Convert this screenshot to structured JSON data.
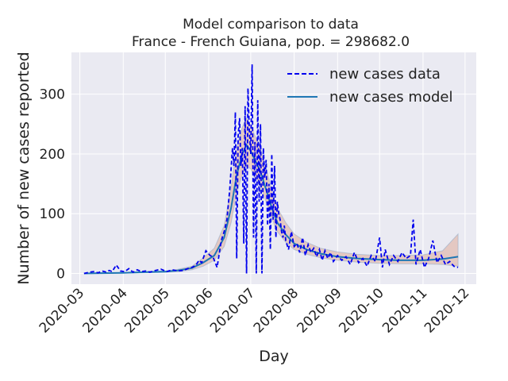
{
  "chart_data": {
    "type": "line",
    "title_line1": "Model comparison to data",
    "title_line2": "France - French Guiana, pop. = 298682.0",
    "xlabel": "Day",
    "ylabel": "Number of new cases reported",
    "x_ticks": [
      "2020-03",
      "2020-04",
      "2020-05",
      "2020-06",
      "2020-07",
      "2020-08",
      "2020-09",
      "2020-10",
      "2020-11",
      "2020-12"
    ],
    "y_ticks": [
      0,
      100,
      200,
      300
    ],
    "xlim": [
      "2020-02-24",
      "2020-12-09"
    ],
    "ylim": [
      -18,
      370
    ],
    "grid": true,
    "legend_position": "top-right",
    "legend": {
      "data_label": "new cases data",
      "model_label": "new cases model"
    },
    "colors": {
      "data": "#0000ee",
      "model": "#1f77b4",
      "background": "#eaeaf2",
      "grid": "#ffffff"
    },
    "series": [
      {
        "name": "new cases data",
        "style": "dashed",
        "x": [
          "2020-03-04",
          "2020-03-08",
          "2020-03-11",
          "2020-03-14",
          "2020-03-17",
          "2020-03-20",
          "2020-03-22",
          "2020-03-24",
          "2020-03-27",
          "2020-03-30",
          "2020-04-02",
          "2020-04-05",
          "2020-04-08",
          "2020-04-11",
          "2020-04-14",
          "2020-04-17",
          "2020-04-20",
          "2020-04-24",
          "2020-04-28",
          "2020-05-02",
          "2020-05-06",
          "2020-05-10",
          "2020-05-14",
          "2020-05-17",
          "2020-05-20",
          "2020-05-23",
          "2020-05-25",
          "2020-05-27",
          "2020-05-30",
          "2020-06-02",
          "2020-06-04",
          "2020-06-07",
          "2020-06-10",
          "2020-06-12",
          "2020-06-14",
          "2020-06-16",
          "2020-06-18",
          "2020-06-19",
          "2020-06-20",
          "2020-06-21",
          "2020-06-22",
          "2020-06-23",
          "2020-06-24",
          "2020-06-25",
          "2020-06-26",
          "2020-06-27",
          "2020-06-28",
          "2020-06-29",
          "2020-06-30",
          "2020-07-01",
          "2020-07-02",
          "2020-07-03",
          "2020-07-04",
          "2020-07-05",
          "2020-07-06",
          "2020-07-07",
          "2020-07-08",
          "2020-07-09",
          "2020-07-10",
          "2020-07-11",
          "2020-07-12",
          "2020-07-13",
          "2020-07-14",
          "2020-07-15",
          "2020-07-16",
          "2020-07-17",
          "2020-07-18",
          "2020-07-19",
          "2020-07-20",
          "2020-07-21",
          "2020-07-22",
          "2020-07-23",
          "2020-07-24",
          "2020-07-25",
          "2020-07-26",
          "2020-07-28",
          "2020-07-30",
          "2020-08-01",
          "2020-08-03",
          "2020-08-05",
          "2020-08-07",
          "2020-08-09",
          "2020-08-11",
          "2020-08-13",
          "2020-08-15",
          "2020-08-17",
          "2020-08-19",
          "2020-08-21",
          "2020-08-23",
          "2020-08-25",
          "2020-08-27",
          "2020-08-29",
          "2020-09-01",
          "2020-09-04",
          "2020-09-07",
          "2020-09-10",
          "2020-09-13",
          "2020-09-16",
          "2020-09-19",
          "2020-09-22",
          "2020-09-25",
          "2020-09-28",
          "2020-10-01",
          "2020-10-03",
          "2020-10-05",
          "2020-10-08",
          "2020-10-11",
          "2020-10-14",
          "2020-10-17",
          "2020-10-20",
          "2020-10-23",
          "2020-10-25",
          "2020-10-27",
          "2020-10-30",
          "2020-11-02",
          "2020-11-05",
          "2020-11-08",
          "2020-11-11",
          "2020-11-14",
          "2020-11-17",
          "2020-11-20",
          "2020-11-23",
          "2020-11-26"
        ],
        "values": [
          0,
          2,
          3,
          1,
          4,
          2,
          5,
          3,
          14,
          4,
          3,
          8,
          2,
          6,
          3,
          4,
          2,
          5,
          7,
          3,
          6,
          4,
          5,
          8,
          10,
          14,
          22,
          18,
          38,
          30,
          28,
          10,
          55,
          70,
          90,
          140,
          210,
          180,
          270,
          25,
          230,
          260,
          180,
          210,
          50,
          280,
          0,
          310,
          240,
          200,
          350,
          60,
          220,
          0,
          290,
          120,
          250,
          0,
          210,
          160,
          190,
          80,
          150,
          40,
          200,
          90,
          180,
          60,
          120,
          100,
          90,
          70,
          60,
          80,
          55,
          40,
          70,
          45,
          50,
          35,
          60,
          30,
          48,
          35,
          42,
          28,
          40,
          22,
          38,
          25,
          35,
          20,
          30,
          22,
          28,
          15,
          35,
          18,
          25,
          12,
          30,
          20,
          60,
          10,
          40,
          15,
          30,
          20,
          35,
          25,
          30,
          90,
          15,
          40,
          10,
          25,
          55,
          18,
          30,
          15,
          20,
          12,
          10
        ]
      },
      {
        "name": "new cases model",
        "style": "solid",
        "x": [
          "2020-03-04",
          "2020-03-15",
          "2020-04-01",
          "2020-04-15",
          "2020-05-01",
          "2020-05-10",
          "2020-05-20",
          "2020-05-28",
          "2020-06-05",
          "2020-06-12",
          "2020-06-17",
          "2020-06-21",
          "2020-06-25",
          "2020-06-28",
          "2020-07-01",
          "2020-07-04",
          "2020-07-08",
          "2020-07-12",
          "2020-07-16",
          "2020-07-20",
          "2020-07-26",
          "2020-08-01",
          "2020-08-10",
          "2020-08-20",
          "2020-09-01",
          "2020-09-15",
          "2020-10-01",
          "2020-10-15",
          "2020-11-01",
          "2020-11-15",
          "2020-11-26"
        ],
        "values": [
          0,
          0.5,
          1,
          2,
          3,
          5,
          9,
          18,
          30,
          60,
          110,
          165,
          200,
          215,
          205,
          190,
          170,
          140,
          110,
          85,
          65,
          50,
          40,
          33,
          28,
          25,
          23,
          22,
          22,
          24,
          28
        ],
        "band_low": [
          0,
          0.3,
          0.6,
          1,
          2,
          3,
          6,
          12,
          22,
          45,
          85,
          135,
          165,
          180,
          175,
          162,
          145,
          120,
          92,
          70,
          52,
          40,
          32,
          26,
          22,
          19,
          17,
          16,
          16,
          15,
          12
        ],
        "band_high": [
          0,
          0.8,
          1.5,
          3,
          4,
          7,
          12,
          26,
          42,
          80,
          145,
          210,
          245,
          260,
          248,
          230,
          210,
          175,
          140,
          110,
          85,
          66,
          52,
          42,
          36,
          32,
          30,
          30,
          31,
          38,
          66
        ]
      }
    ]
  }
}
